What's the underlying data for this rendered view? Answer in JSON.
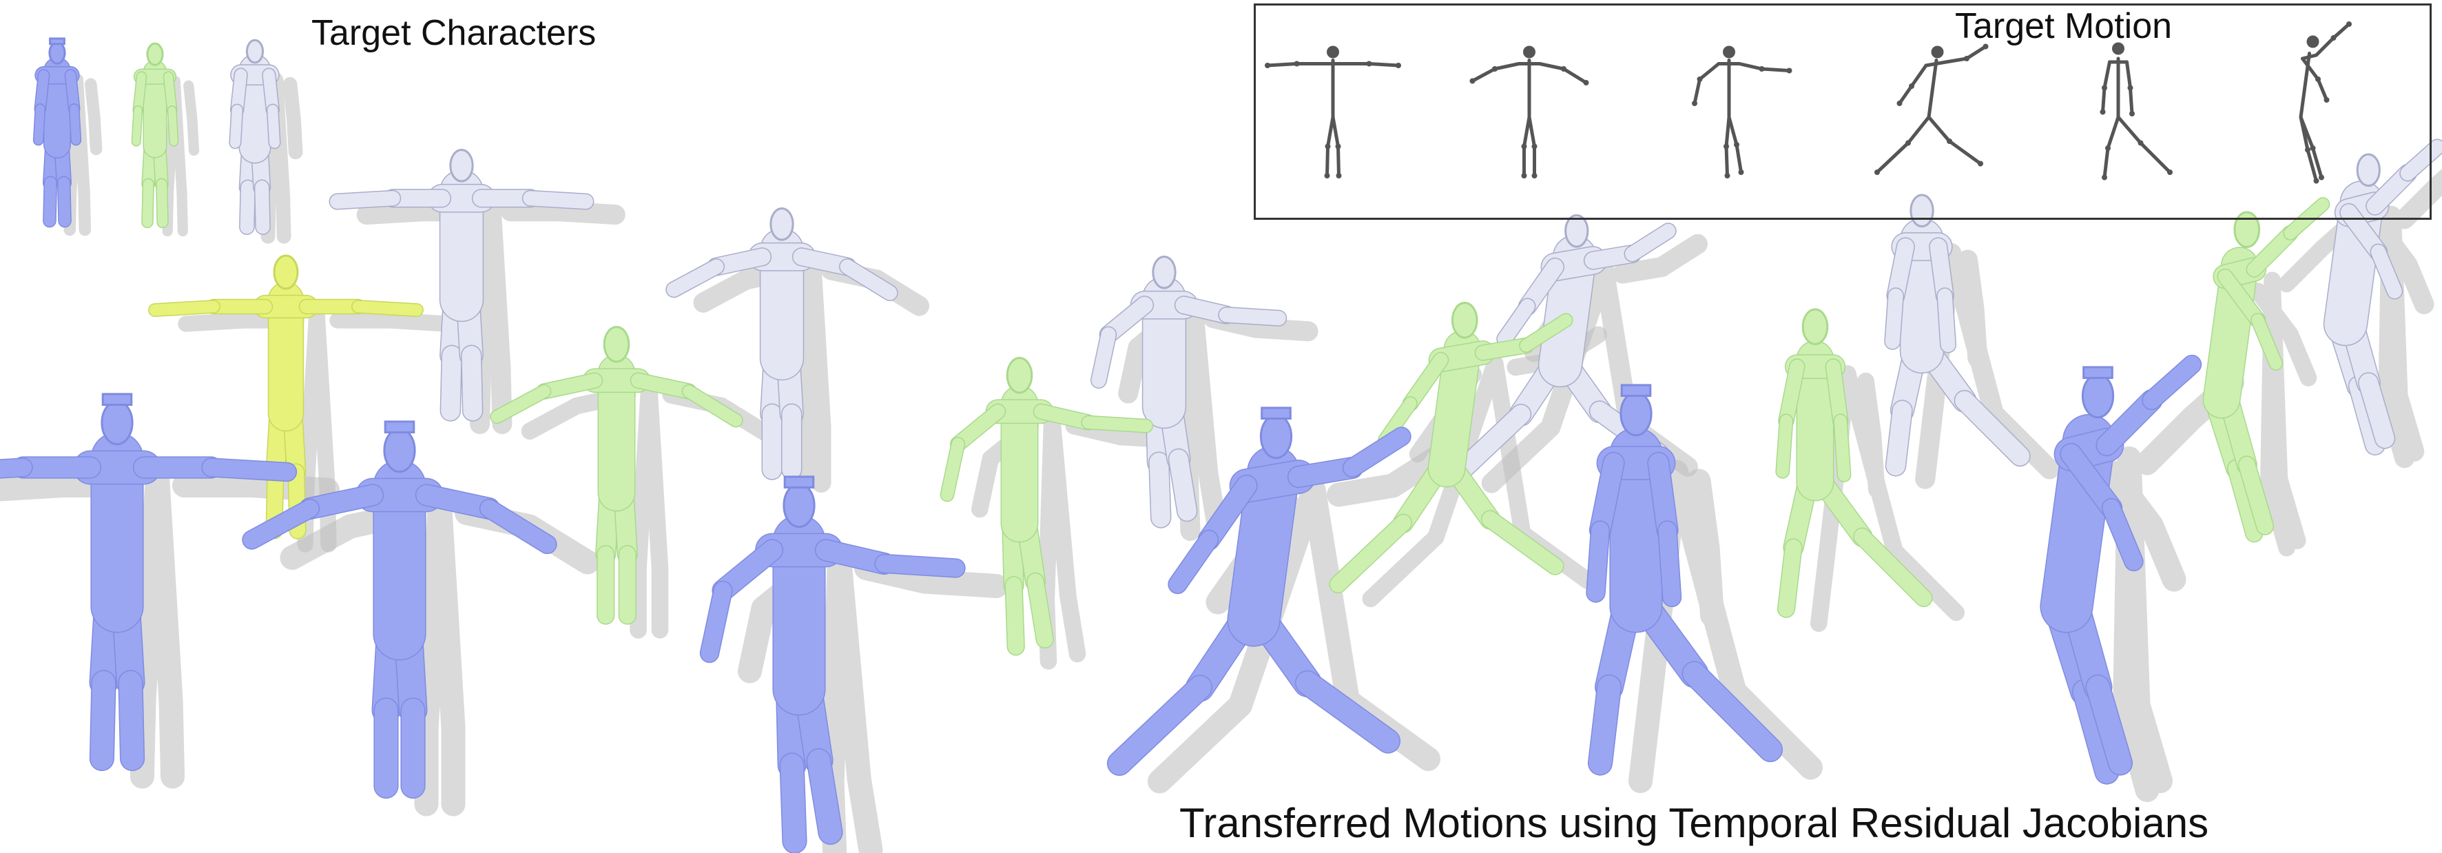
{
  "labels": {
    "target_characters": "Target Characters",
    "target_motion": "Target Motion",
    "caption": "Transferred Motions using Temporal Residual Jacobians"
  },
  "colors": {
    "human": "#9aa6f2",
    "human_edge": "#7f8be0",
    "lean": "#cdf0b0",
    "lean_edge": "#a9d98c",
    "yellow": "#e6f27a",
    "yellow_edge": "#c9d75a",
    "monster": "#e4e6f4",
    "monster_edge": "#a9adc8",
    "skeleton": "#555555",
    "shadow": "#bdbdbd"
  },
  "figures": [
    {
      "kind": "human",
      "pose": "stand"
    },
    {
      "kind": "lean",
      "pose": "stand"
    },
    {
      "kind": "monster",
      "pose": "stand"
    },
    {
      "kind": "monster",
      "pose": "tpose"
    },
    {
      "kind": "yellow",
      "pose": "tpose"
    },
    {
      "kind": "human",
      "pose": "tpose"
    },
    {
      "kind": "monster",
      "pose": "armsdown"
    },
    {
      "kind": "lean",
      "pose": "armsdown"
    },
    {
      "kind": "human",
      "pose": "armsdown"
    },
    {
      "kind": "monster",
      "pose": "step"
    },
    {
      "kind": "lean",
      "pose": "step"
    },
    {
      "kind": "human",
      "pose": "step"
    },
    {
      "kind": "monster",
      "pose": "run"
    },
    {
      "kind": "lean",
      "pose": "run"
    },
    {
      "kind": "human",
      "pose": "run"
    },
    {
      "kind": "monster",
      "pose": "stride"
    },
    {
      "kind": "lean",
      "pose": "stride"
    },
    {
      "kind": "human",
      "pose": "stride"
    },
    {
      "kind": "monster",
      "pose": "jump"
    },
    {
      "kind": "lean",
      "pose": "jump"
    },
    {
      "kind": "human",
      "pose": "jump"
    }
  ],
  "skeletons": [
    {
      "pose": "tpose"
    },
    {
      "pose": "armsdown"
    },
    {
      "pose": "step"
    },
    {
      "pose": "run"
    },
    {
      "pose": "stride"
    },
    {
      "pose": "jump"
    }
  ]
}
